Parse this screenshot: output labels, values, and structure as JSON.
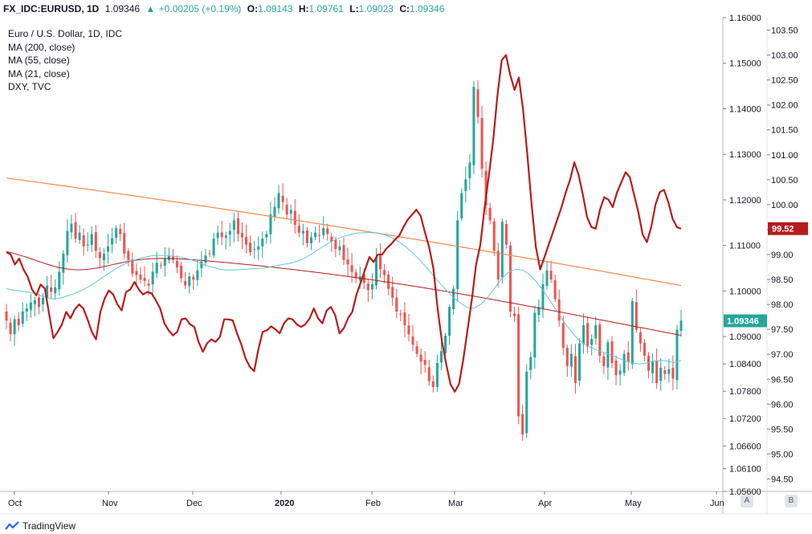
{
  "header": {
    "symbol": "FX_IDC:EURUSD, 1D",
    "last": "1.09346",
    "arrow": "▲",
    "change": "+0.00205 (+0.19%)",
    "open_label": "O:",
    "open_value": "1.09143",
    "high_label": "H:",
    "high_value": "1.09761",
    "low_label": "L:",
    "low_value": "1.09023",
    "close_label": "C:",
    "close_value": "1.09346"
  },
  "legend": {
    "title": "Euro / U.S. Dollar, 1D, IDC",
    "ma200": "MA (200, close)",
    "ma55": "MA (55, close)",
    "ma21": "MA (21, close)",
    "dxy": "DXY, TVC"
  },
  "brand": "TradingView",
  "scale_buttons": [
    "A",
    "B"
  ],
  "colors": {
    "up": "#26a69a",
    "down": "#ef5350",
    "dxy": "#b71c1c",
    "ma200": "#f0894d",
    "ma55": "#b71c1c",
    "ma21": "#5ec8d6"
  },
  "chart_data": {
    "type": "line",
    "instrument": "EURUSD",
    "x_ticks": [
      "Oct",
      "Nov",
      "Dec",
      "2020",
      "Feb",
      "Mar",
      "Apr",
      "May",
      "Jun"
    ],
    "axis_a": {
      "ticks": [
        "1.16000",
        "1.15000",
        "1.14000",
        "1.13000",
        "1.12000",
        "1.11000",
        "1.10000",
        "1.09000",
        "1.08400",
        "1.07800",
        "1.07200",
        "1.06600",
        "1.06100",
        "1.05600"
      ],
      "ylim": [
        1.056,
        1.16
      ],
      "last_value_label": "1.09346"
    },
    "axis_b": {
      "ticks": [
        "103.50",
        "103.00",
        "102.50",
        "102.00",
        "101.50",
        "101.00",
        "100.50",
        "100.00",
        "99.50",
        "99.00",
        "98.50",
        "98.00",
        "97.50",
        "97.00",
        "96.50",
        "96.00",
        "95.50",
        "95.00",
        "94.50"
      ],
      "ylim": [
        94.25,
        103.75
      ],
      "last_value_label": "99.52"
    },
    "eurusd_closes": [
      1.0935,
      1.0905,
      1.0938,
      1.0925,
      1.0955,
      1.0962,
      1.0975,
      1.098,
      1.0965,
      1.0985,
      1.1012,
      1.0998,
      1.1008,
      1.1042,
      1.1082,
      1.1132,
      1.1148,
      1.1115,
      1.1128,
      1.1098,
      1.1102,
      1.1125,
      1.1088,
      1.1072,
      1.1082,
      1.1098,
      1.1116,
      1.1138,
      1.1125,
      1.1082,
      1.1068,
      1.1038,
      1.1035,
      1.1025,
      1.1022,
      1.1012,
      1.1042,
      1.1062,
      1.1055,
      1.1072,
      1.1078,
      1.1068,
      1.1052,
      1.1028,
      1.1012,
      1.1032,
      1.1025,
      1.1045,
      1.1065,
      1.1078,
      1.1082,
      1.1115,
      1.1128,
      1.1118,
      1.1122,
      1.1132,
      1.1155,
      1.1125,
      1.1118,
      1.1102,
      1.1085,
      1.1092,
      1.1098,
      1.1115,
      1.1125,
      1.1168,
      1.1185,
      1.1215,
      1.1195,
      1.1168,
      1.1178,
      1.1145,
      1.1128,
      1.1132,
      1.1105,
      1.1118,
      1.1128,
      1.1122,
      1.1138,
      1.1125,
      1.1108,
      1.1092,
      1.1098,
      1.1068,
      1.1058,
      1.1042,
      1.1028,
      1.1032,
      1.1018,
      1.1002,
      1.1015,
      1.1075,
      1.1048,
      1.1035,
      1.1005,
      1.0985,
      1.0955,
      1.0948,
      1.0925,
      1.0905,
      1.0882,
      1.0862,
      1.0845,
      1.0838,
      1.0802,
      1.0789,
      1.0842,
      1.0868,
      1.0902,
      1.0965,
      1.1005,
      1.1155,
      1.1215,
      1.1245,
      1.1282,
      1.1448,
      1.1382,
      1.1268,
      1.1188,
      1.1155,
      1.1088,
      1.1025,
      1.1152,
      1.1102,
      1.0955,
      1.0945,
      1.0725,
      1.0685,
      1.0823,
      1.0855,
      1.0952,
      1.0965,
      1.1015,
      1.1045,
      1.1025,
      1.0982,
      1.0935,
      1.0875,
      1.0835,
      1.0862,
      1.0798,
      1.0885,
      1.0925,
      1.0878,
      1.0895,
      1.0925,
      1.0858,
      1.0835,
      1.0888,
      1.0842,
      1.0815,
      1.0825,
      1.0862,
      1.0845,
      1.0978,
      1.0915,
      1.0885,
      1.0858,
      1.0825,
      1.0845,
      1.0798,
      1.0832,
      1.0818,
      1.0828,
      1.0808,
      1.0915,
      1.0935
    ],
    "eurusd_ma21": [
      1.1005,
      1.1002,
      1.1,
      1.0998,
      1.0995,
      1.099,
      1.0985,
      1.0982,
      1.0985,
      1.099,
      1.0995,
      1.1002,
      1.101,
      1.102,
      1.103,
      1.104,
      1.105,
      1.1058,
      1.1065,
      1.107,
      1.1074,
      1.1077,
      1.1078,
      1.1078,
      1.1077,
      1.1075,
      1.1072,
      1.1068,
      1.1062,
      1.1056,
      1.1052,
      1.1048,
      1.1046,
      1.1046,
      1.1047,
      1.1048,
      1.1049,
      1.105,
      1.1052,
      1.1055,
      1.1058,
      1.106,
      1.1064,
      1.107,
      1.1078,
      1.1088,
      1.1098,
      1.1107,
      1.1114,
      1.112,
      1.1124,
      1.1127,
      1.1128,
      1.1128,
      1.1127,
      1.1123,
      1.1117,
      1.1108,
      1.1097,
      1.1084,
      1.1069,
      1.1052,
      1.1034,
      1.1016,
      1.1,
      1.0985,
      1.0973,
      1.0963,
      1.0963,
      1.0972,
      1.0988,
      1.1008,
      1.1028,
      1.1042,
      1.1048,
      1.1046,
      1.1036,
      1.102,
      1.1,
      1.0978,
      1.0955,
      1.0932,
      1.0912,
      1.0895,
      1.0883,
      1.0875,
      1.0869,
      1.0864,
      1.0858,
      1.0852,
      1.0846,
      1.0842,
      1.084,
      1.0842,
      1.0846,
      1.0848,
      1.0846,
      1.0843,
      1.0848
    ],
    "dxy_closes": [
      99.05,
      99.0,
      98.8,
      98.92,
      98.7,
      98.55,
      98.3,
      98.18,
      98.4,
      98.32,
      97.8,
      97.32,
      97.45,
      97.6,
      97.85,
      97.72,
      97.9,
      98.0,
      97.92,
      97.7,
      97.45,
      97.3,
      97.85,
      98.12,
      98.28,
      98.2,
      98.0,
      97.88,
      98.25,
      98.3,
      98.45,
      98.3,
      98.2,
      98.25,
      98.22,
      98.08,
      97.92,
      97.62,
      97.48,
      97.38,
      97.45,
      97.7,
      97.72,
      97.6,
      97.55,
      97.25,
      97.05,
      97.22,
      97.3,
      97.25,
      97.35,
      97.7,
      97.7,
      97.68,
      97.42,
      97.2,
      96.92,
      96.75,
      96.66,
      97.1,
      97.45,
      97.48,
      97.56,
      97.5,
      97.42,
      97.62,
      97.72,
      97.7,
      97.6,
      97.55,
      97.6,
      97.72,
      97.92,
      97.72,
      97.62,
      97.88,
      97.95,
      97.78,
      97.42,
      97.52,
      97.72,
      97.85,
      98.2,
      98.45,
      98.7,
      98.95,
      98.85,
      99.0,
      99.0,
      99.12,
      99.2,
      99.3,
      99.38,
      99.55,
      99.7,
      99.8,
      99.9,
      99.78,
      99.45,
      99.15,
      98.72,
      97.9,
      97.25,
      96.8,
      96.4,
      96.25,
      96.4,
      96.9,
      97.5,
      98.1,
      98.8,
      99.2,
      99.95,
      100.6,
      101.3,
      102.2,
      102.9,
      103.0,
      102.6,
      102.3,
      102.55,
      101.9,
      101.0,
      100.0,
      99.15,
      98.7,
      98.95,
      99.2,
      99.45,
      99.7,
      99.95,
      100.25,
      100.5,
      100.85,
      100.6,
      100.2,
      99.75,
      99.55,
      99.52,
      99.9,
      100.15,
      100.1,
      99.95,
      100.25,
      100.45,
      100.65,
      100.55,
      100.2,
      99.85,
      99.4,
      99.25,
      99.55,
      100.0,
      100.25,
      100.3,
      100.05,
      99.72,
      99.55,
      99.52
    ],
    "ma200_start": 1.1248,
    "ma200_end": 1.1012,
    "ma55_start": 1.1095,
    "ma55_end": 1.0912
  }
}
